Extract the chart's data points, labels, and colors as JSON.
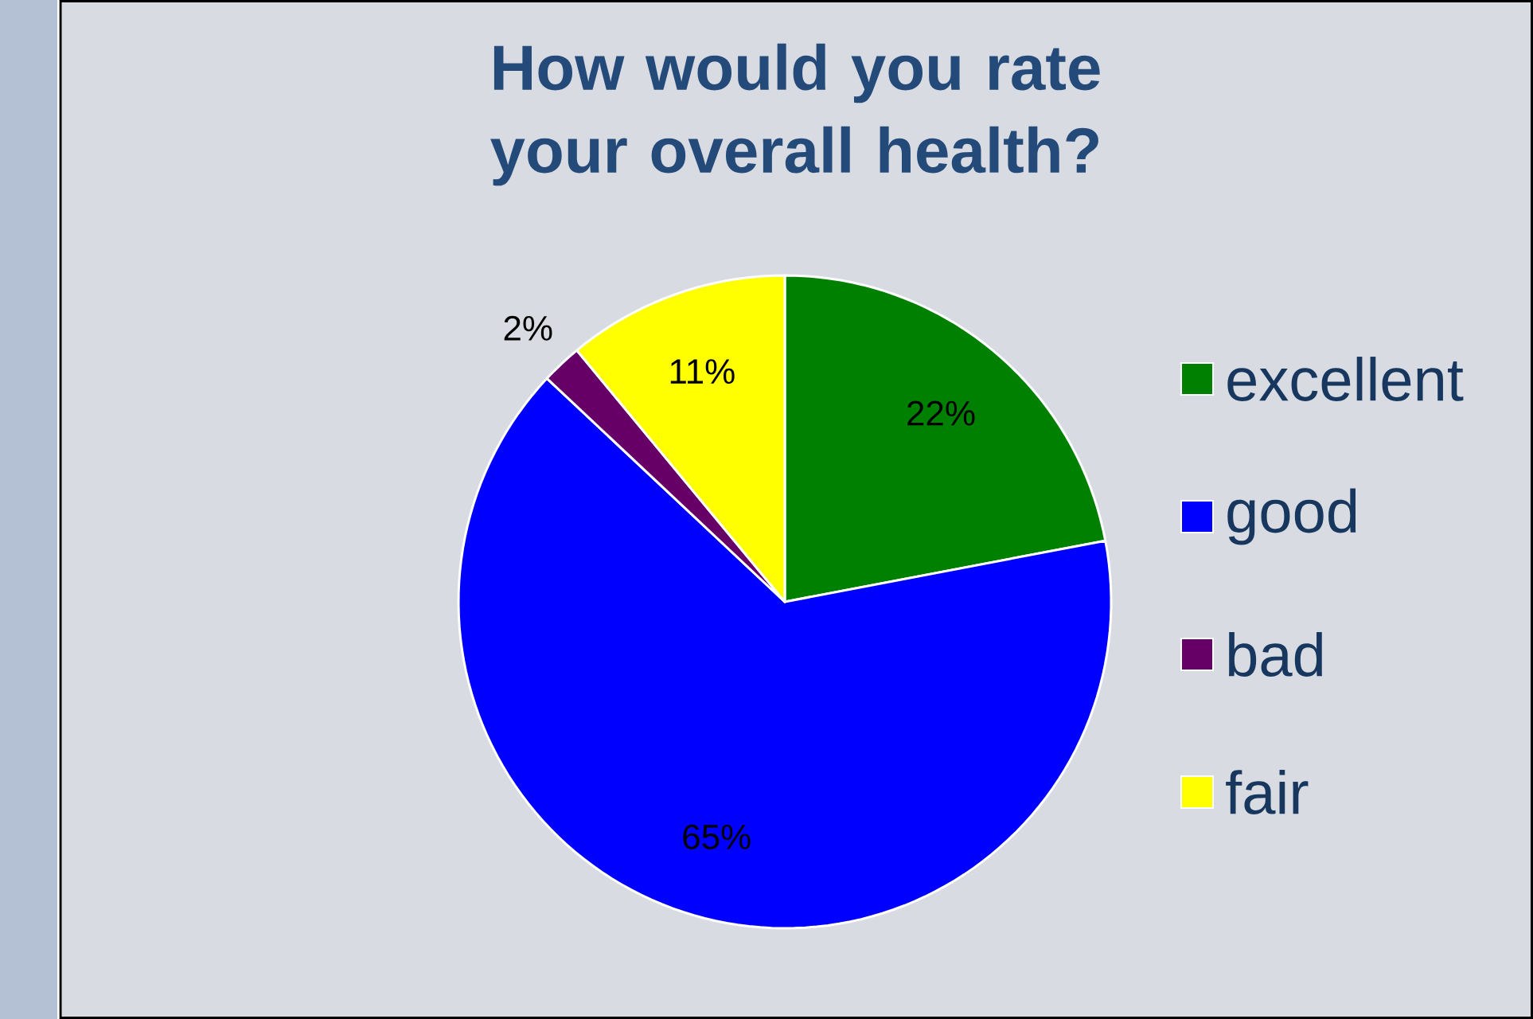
{
  "chart_data": {
    "type": "pie",
    "title": "How would you rate your overall health?",
    "categories": [
      "excellent",
      "good",
      "bad",
      "fair"
    ],
    "values": [
      22,
      65,
      2,
      11
    ],
    "value_labels": [
      "22%",
      "65%",
      "2%",
      "11%"
    ],
    "colors": [
      "#008000",
      "#0000ff",
      "#660066",
      "#ffff00"
    ],
    "legend": "right"
  }
}
